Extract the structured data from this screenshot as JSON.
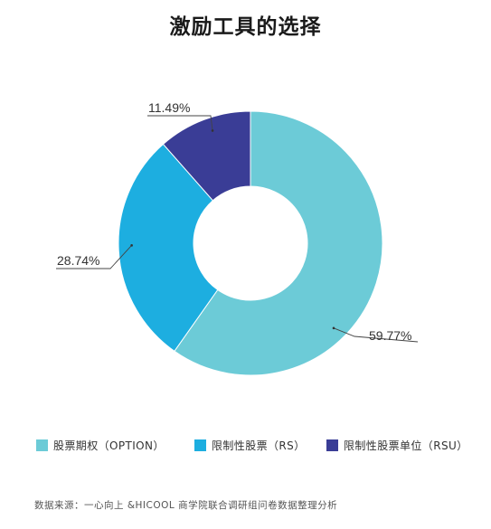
{
  "chart_data": {
    "type": "pie",
    "title": "激励工具的选择",
    "donut": true,
    "start": "top",
    "direction": "clockwise",
    "slices": [
      {
        "name": "股票期权（OPTION）",
        "value": 59.77,
        "label": "59.77%",
        "color": "#6ccbd7"
      },
      {
        "name": "限制性股票（RS）",
        "value": 28.74,
        "label": "28.74%",
        "color": "#1daee0"
      },
      {
        "name": "限制性股票单位（RSU）",
        "value": 11.49,
        "label": "11.49%",
        "color": "#3a3d96"
      }
    ],
    "legend_position": "bottom"
  },
  "footer": {
    "source": "数据来源：一心向上 &HICOOL 商学院联合调研组问卷数据整理分析"
  }
}
